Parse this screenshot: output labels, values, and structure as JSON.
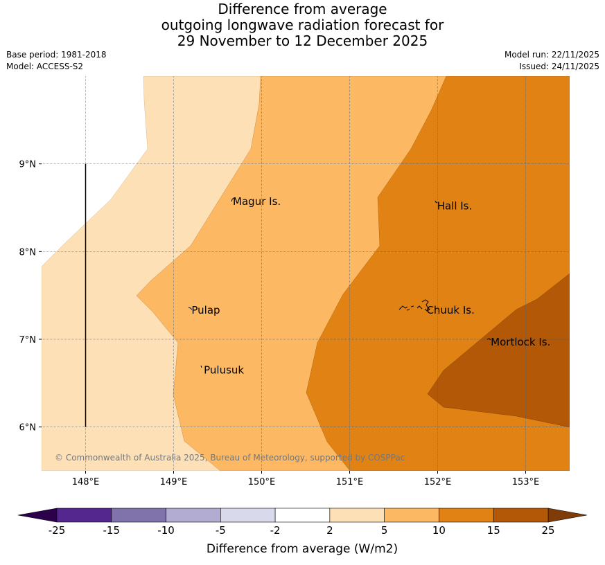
{
  "header": {
    "title_lines": [
      "Difference from average",
      "outgoing longwave radiation forecast for",
      "29 November to 12 December 2025"
    ],
    "base_period": "Base period: 1981-2018",
    "model": "Model: ACCESS-S2",
    "model_run": "Model run: 22/11/2025",
    "issued": "Issued: 24/11/2025"
  },
  "map": {
    "lon_range": [
      147.5,
      153.5
    ],
    "lat_range": [
      5.5,
      10.0
    ],
    "lon_ticks": [
      {
        "value": 148,
        "label": "148°E"
      },
      {
        "value": 149,
        "label": "149°E"
      },
      {
        "value": 150,
        "label": "150°E"
      },
      {
        "value": 151,
        "label": "151°E"
      },
      {
        "value": 152,
        "label": "152°E"
      },
      {
        "value": 153,
        "label": "153°E"
      }
    ],
    "lat_ticks": [
      {
        "value": 9,
        "label": "9°N"
      },
      {
        "value": 8,
        "label": "8°N"
      },
      {
        "value": 7,
        "label": "7°N"
      },
      {
        "value": 6,
        "label": "6°N"
      }
    ],
    "boundary_line": {
      "lon": 148,
      "lat_from": 6,
      "lat_to": 9
    },
    "places": [
      {
        "name": "Magur Is.",
        "lon": 149.65,
        "lat": 8.57
      },
      {
        "name": "Hall Is.",
        "lon": 151.97,
        "lat": 8.52
      },
      {
        "name": "Pulap",
        "lon": 149.18,
        "lat": 7.33
      },
      {
        "name": "Chuuk Is.",
        "lon": 151.85,
        "lat": 7.33
      },
      {
        "name": "Mortlock Is.",
        "lon": 152.58,
        "lat": 6.97
      },
      {
        "name": "Pulusuk",
        "lon": 149.32,
        "lat": 6.65
      }
    ],
    "copyright": "© Commonwealth of Australia 2025, Bureau of Meteorology, supported by COSPPac"
  },
  "colorbar": {
    "title": "Difference from average (W/m2)",
    "tick_labels": [
      "-25",
      "-15",
      "-10",
      "-5",
      "-2",
      "2",
      "5",
      "10",
      "15",
      "25"
    ],
    "colors": [
      "#54278f",
      "#8073ac",
      "#b2abd2",
      "#d8daeb",
      "#ffffff",
      "#fee0b6",
      "#fdb863",
      "#e08214",
      "#b35806"
    ],
    "under_color": "#2d004b",
    "over_color": "#7f3b08"
  }
}
